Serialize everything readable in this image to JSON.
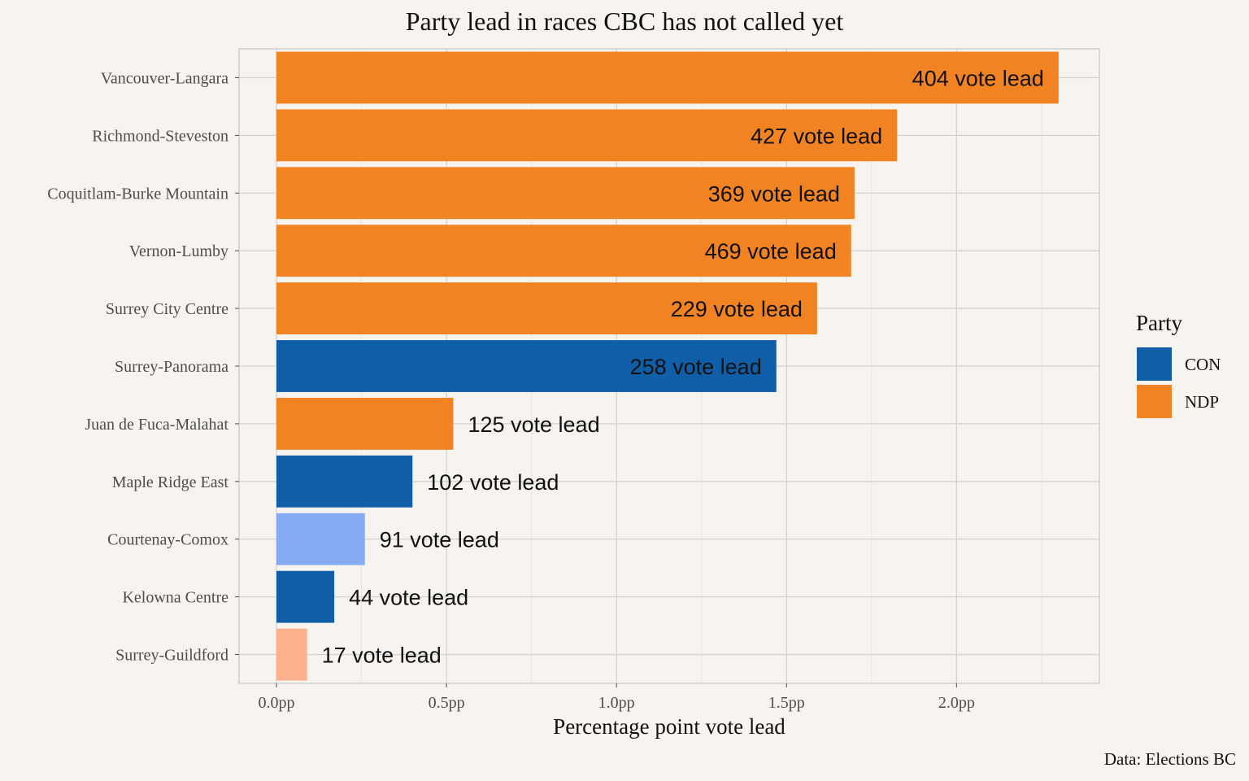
{
  "chart_data": {
    "type": "bar",
    "orientation": "horizontal",
    "title": "Party lead in races CBC has not called yet",
    "xlabel": "Percentage point vote lead",
    "ylabel": "",
    "xlim": [
      -0.11,
      2.42
    ],
    "x_ticks": [
      {
        "value": 0.0,
        "label": "0.0pp"
      },
      {
        "value": 0.5,
        "label": "0.5pp"
      },
      {
        "value": 1.0,
        "label": "1.0pp"
      },
      {
        "value": 1.5,
        "label": "1.5pp"
      },
      {
        "value": 2.0,
        "label": "2.0pp"
      }
    ],
    "categories": [
      "Vancouver-Langara",
      "Richmond-Steveston",
      "Coquitlam-Burke Mountain",
      "Vernon-Lumby",
      "Surrey City Centre",
      "Surrey-Panorama",
      "Juan de Fuca-Malahat",
      "Maple Ridge East",
      "Courtenay-Comox",
      "Kelowna Centre",
      "Surrey-Guildford"
    ],
    "values": [
      2.3,
      1.825,
      1.7,
      1.69,
      1.59,
      1.47,
      0.52,
      0.4,
      0.26,
      0.17,
      0.09
    ],
    "bar_labels": [
      "404 vote lead",
      "427 vote lead",
      "369 vote lead",
      "469 vote lead",
      "229 vote lead",
      "258 vote lead",
      "125 vote lead",
      "102 vote lead",
      "91 vote lead",
      "44 vote lead",
      "17 vote lead"
    ],
    "bar_colors": [
      "#f28322",
      "#f28322",
      "#f28322",
      "#f28322",
      "#f28322",
      "#115ea8",
      "#f28322",
      "#115ea8",
      "#87abf2",
      "#115ea8",
      "#fcb08c"
    ],
    "label_inside": [
      true,
      true,
      true,
      true,
      true,
      true,
      false,
      false,
      false,
      false,
      false
    ],
    "grid": true,
    "legend": {
      "title": "Party",
      "position": "right",
      "items": [
        {
          "label": "CON",
          "color": "#115ea8"
        },
        {
          "label": "NDP",
          "color": "#f28322"
        }
      ]
    },
    "caption": "Data: Elections BC"
  }
}
